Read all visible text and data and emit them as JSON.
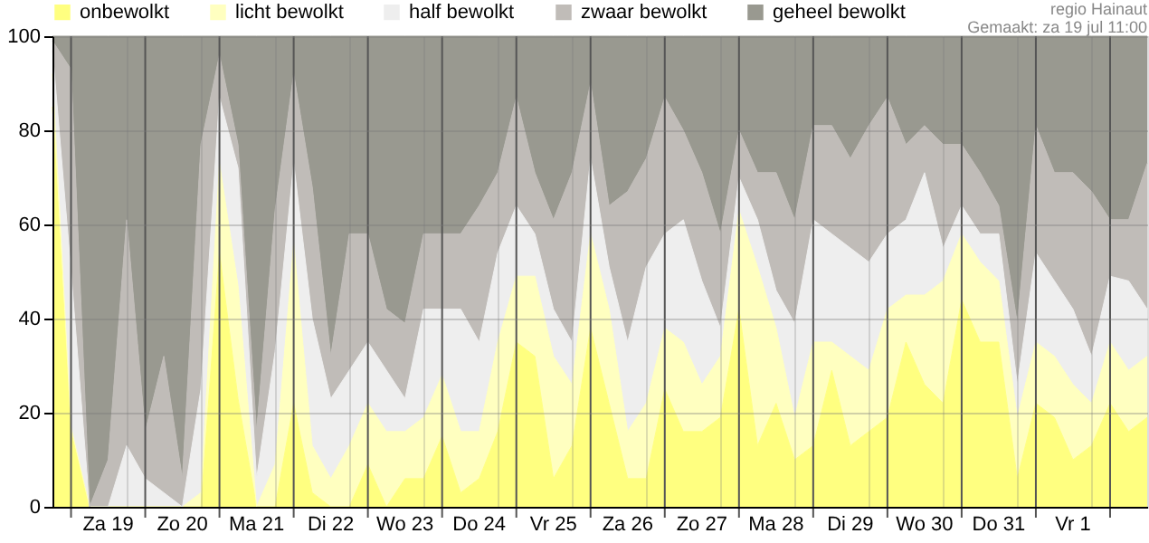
{
  "chart_data": {
    "type": "area",
    "stacked": true,
    "legend": "top left",
    "grid": true,
    "marker": "none",
    "annotations": [
      "regio Hainaut",
      "Gemaakt: za 19 jul 11:00"
    ],
    "categories": [
      null,
      null,
      null,
      "Za 19",
      null,
      null,
      null,
      "Zo 20",
      null,
      null,
      null,
      "Ma 21",
      null,
      null,
      null,
      "Di 22",
      null,
      null,
      null,
      "Wo 23",
      null,
      null,
      null,
      "Do 24",
      null,
      null,
      null,
      "Vr 25",
      null,
      null,
      null,
      "Za 26",
      null,
      null,
      null,
      "Zo 27",
      null,
      null,
      null,
      "Ma 28",
      null,
      null,
      null,
      "Di 29",
      null,
      null,
      null,
      "Wo 30",
      null,
      null,
      null,
      "Do 31",
      null,
      null,
      null,
      "Vr 1",
      null,
      null,
      null,
      null
    ],
    "ylim": [
      0,
      100
    ],
    "yticks": [
      0,
      20,
      40,
      60,
      80,
      100
    ],
    "series": [
      {
        "name": "onbewolkt",
        "color": "#ffff80",
        "values": [
          85,
          16,
          0,
          0,
          0,
          0,
          0,
          0,
          0,
          54,
          23,
          0,
          0,
          22,
          3,
          0,
          0,
          9,
          0,
          6,
          6,
          15,
          3,
          6,
          16,
          35,
          32,
          6,
          13,
          38,
          22,
          6,
          6,
          25,
          16,
          16,
          19,
          42,
          13,
          22,
          10,
          13,
          29,
          13,
          16,
          19,
          35,
          26,
          22,
          44,
          35,
          35,
          6,
          22,
          19,
          10,
          13,
          22,
          16,
          19
        ]
      },
      {
        "name": "licht bewolkt",
        "color": "#ffffc0",
        "values": [
          7,
          1,
          0,
          0,
          0,
          0,
          0,
          0,
          3,
          19,
          24,
          0,
          9,
          34,
          10,
          6,
          13,
          13,
          16,
          10,
          13,
          13,
          13,
          10,
          19,
          14,
          17,
          26,
          13,
          20,
          20,
          10,
          16,
          13,
          19,
          10,
          13,
          21,
          38,
          16,
          9,
          22,
          6,
          19,
          13,
          23,
          10,
          19,
          26,
          14,
          17,
          13,
          13,
          13,
          13,
          16,
          9,
          13,
          13,
          13
        ]
      },
      {
        "name": "half bewolkt",
        "color": "#eeeeee",
        "values": [
          5,
          33,
          0,
          0,
          13,
          6,
          3,
          0,
          22,
          14,
          25,
          6,
          24,
          17,
          27,
          17,
          16,
          13,
          13,
          7,
          23,
          14,
          26,
          19,
          19,
          15,
          9,
          10,
          9,
          16,
          9,
          19,
          29,
          20,
          26,
          22,
          6,
          7,
          10,
          8,
          20,
          26,
          23,
          23,
          23,
          16,
          16,
          26,
          7,
          6,
          6,
          10,
          7,
          19,
          16,
          16,
          10,
          14,
          19,
          10
        ]
      },
      {
        "name": "zwaar bewolkt",
        "color": "#c0bcb8",
        "values": [
          2,
          43,
          0,
          10,
          48,
          10,
          29,
          6,
          52,
          9,
          5,
          10,
          30,
          19,
          28,
          9,
          29,
          23,
          13,
          16,
          16,
          16,
          16,
          29,
          17,
          23,
          13,
          19,
          36,
          16,
          13,
          32,
          23,
          29,
          19,
          23,
          20,
          10,
          10,
          25,
          22,
          20,
          23,
          19,
          29,
          29,
          16,
          10,
          22,
          13,
          13,
          6,
          13,
          27,
          23,
          29,
          35,
          12,
          13,
          31
        ]
      },
      {
        "name": "geheel bewolkt",
        "color": "#999990",
        "values": [
          1,
          7,
          100,
          90,
          39,
          84,
          68,
          94,
          23,
          4,
          23,
          84,
          37,
          8,
          32,
          68,
          42,
          42,
          58,
          61,
          42,
          42,
          42,
          36,
          29,
          13,
          29,
          39,
          29,
          10,
          36,
          33,
          26,
          13,
          20,
          29,
          42,
          20,
          29,
          29,
          39,
          19,
          19,
          26,
          19,
          13,
          23,
          19,
          23,
          23,
          29,
          36,
          61,
          19,
          29,
          29,
          33,
          39,
          39,
          27
        ]
      }
    ]
  }
}
